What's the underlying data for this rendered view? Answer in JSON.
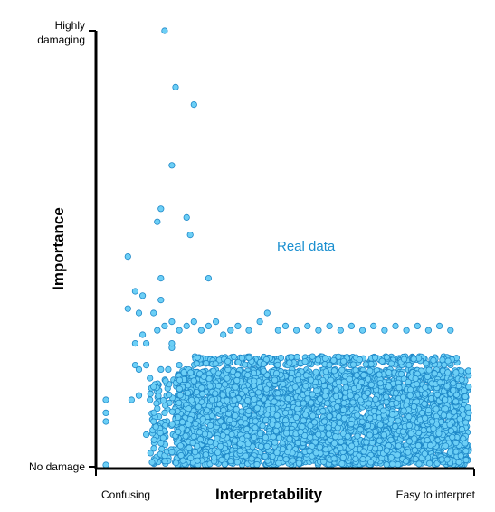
{
  "chart_data": {
    "type": "scatter",
    "title": "",
    "xlabel": "Interpretability",
    "ylabel": "Importance",
    "x_tick_labels": {
      "min": "Confusing",
      "max": "Easy to interpret"
    },
    "y_tick_labels": {
      "min": "No damage",
      "max_line1": "Highly",
      "max_line2": "damaging"
    },
    "annotation": "Real data",
    "xlim": [
      0,
      1
    ],
    "ylim": [
      0,
      1
    ],
    "grid": false,
    "point_color": "#6ccff6",
    "point_edge_color": "#1e88c8",
    "annotation_color": "#1a8fd0",
    "points": [
      [
        0.01,
        0.0
      ],
      [
        0.01,
        0.1
      ],
      [
        0.01,
        0.12
      ],
      [
        0.01,
        0.15
      ],
      [
        0.17,
        1.0
      ],
      [
        0.2,
        0.87
      ],
      [
        0.25,
        0.83
      ],
      [
        0.19,
        0.69
      ],
      [
        0.16,
        0.59
      ],
      [
        0.23,
        0.57
      ],
      [
        0.15,
        0.56
      ],
      [
        0.24,
        0.53
      ],
      [
        0.07,
        0.48
      ],
      [
        0.16,
        0.43
      ],
      [
        0.29,
        0.43
      ],
      [
        0.09,
        0.4
      ],
      [
        0.11,
        0.39
      ],
      [
        0.16,
        0.38
      ],
      [
        0.07,
        0.36
      ],
      [
        0.1,
        0.35
      ],
      [
        0.14,
        0.35
      ],
      [
        0.19,
        0.33
      ],
      [
        0.17,
        0.32
      ],
      [
        0.15,
        0.31
      ],
      [
        0.11,
        0.3
      ],
      [
        0.09,
        0.28
      ],
      [
        0.12,
        0.28
      ],
      [
        0.19,
        0.27
      ],
      [
        0.19,
        0.28
      ],
      [
        0.1,
        0.22
      ],
      [
        0.09,
        0.23
      ],
      [
        0.12,
        0.23
      ],
      [
        0.13,
        0.2
      ],
      [
        0.14,
        0.18
      ],
      [
        0.16,
        0.22
      ],
      [
        0.18,
        0.22
      ],
      [
        0.21,
        0.23
      ],
      [
        0.08,
        0.15
      ],
      [
        0.1,
        0.16
      ],
      [
        0.13,
        0.15
      ],
      [
        0.15,
        0.13
      ],
      [
        0.17,
        0.12
      ],
      [
        0.14,
        0.1
      ],
      [
        0.12,
        0.07
      ],
      [
        0.16,
        0.05
      ],
      [
        0.19,
        0.03
      ],
      [
        0.22,
        0.01
      ],
      [
        0.26,
        0.01
      ],
      [
        0.21,
        0.31
      ],
      [
        0.23,
        0.32
      ],
      [
        0.25,
        0.33
      ],
      [
        0.27,
        0.31
      ],
      [
        0.29,
        0.32
      ],
      [
        0.31,
        0.33
      ],
      [
        0.33,
        0.3
      ],
      [
        0.35,
        0.31
      ],
      [
        0.37,
        0.32
      ],
      [
        0.4,
        0.31
      ],
      [
        0.43,
        0.33
      ],
      [
        0.45,
        0.35
      ],
      [
        0.48,
        0.31
      ],
      [
        0.5,
        0.32
      ],
      [
        0.53,
        0.31
      ],
      [
        0.56,
        0.32
      ],
      [
        0.59,
        0.31
      ],
      [
        0.62,
        0.32
      ],
      [
        0.65,
        0.31
      ],
      [
        0.68,
        0.32
      ],
      [
        0.71,
        0.31
      ],
      [
        0.74,
        0.32
      ],
      [
        0.77,
        0.31
      ],
      [
        0.8,
        0.32
      ],
      [
        0.83,
        0.31
      ],
      [
        0.86,
        0.32
      ],
      [
        0.89,
        0.31
      ],
      [
        0.92,
        0.32
      ],
      [
        0.95,
        0.31
      ],
      [
        0.3,
        0.15
      ],
      [
        0.5,
        0.12
      ],
      [
        0.7,
        0.18
      ],
      [
        0.9,
        0.1
      ],
      [
        0.99,
        0.05
      ],
      [
        1.0,
        0.12
      ]
    ],
    "dense_region": {
      "x_range": [
        0.2,
        1.0
      ],
      "y_range": [
        0.0,
        0.22
      ],
      "estimated_count": 4000
    },
    "upper_band": {
      "x_range": [
        0.25,
        0.97
      ],
      "y_range": [
        0.23,
        0.25
      ]
    }
  }
}
